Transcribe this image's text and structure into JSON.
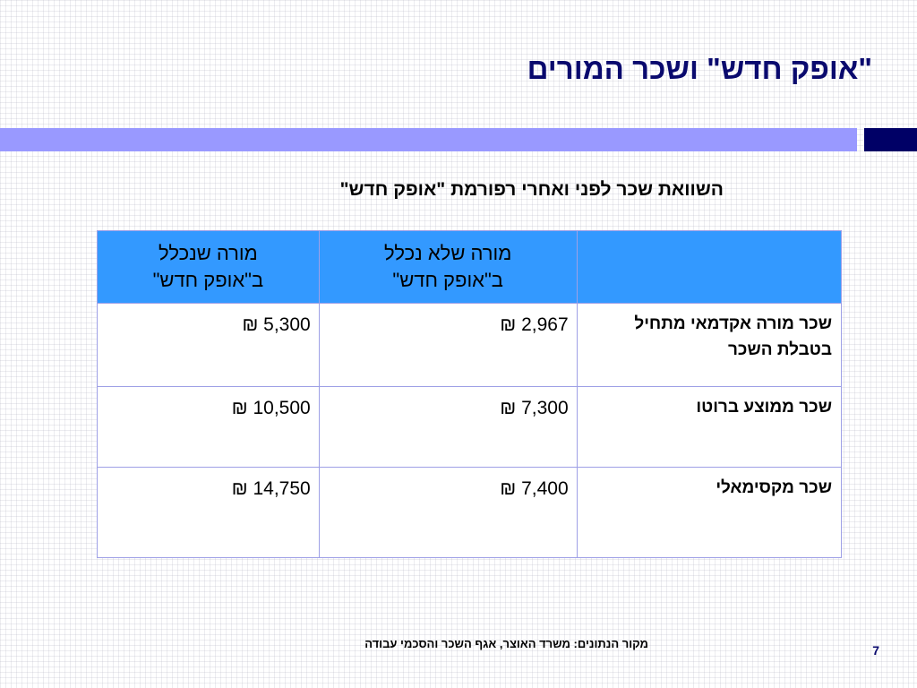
{
  "slide": {
    "title": "\"אופק חדש\" ושכר המורים",
    "subtitle": "השוואת שכר לפני ואחרי רפורמת \"אופק חדש\"",
    "source_note": "מקור הנתונים:  משרד האוצר, אגף השכר והסכמי עבודה",
    "page_number": "7"
  },
  "colors": {
    "title": "#0a0a6e",
    "band_light": "#9999ff",
    "band_dark": "#000066",
    "table_header_bg": "#3399ff",
    "table_border": "#9ea0e6"
  },
  "table": {
    "headers": [
      "",
      "מורה שלא נכלל\nב\"אופק חדש\"",
      "מורה שנכלל\nב\"אופק חדש\""
    ],
    "rows": [
      {
        "label": "שכר מורה אקדמאי מתחיל\nבטבלת השכר",
        "not_included": "2,967 ₪",
        "included": "5,300 ₪"
      },
      {
        "label": "שכר ממוצע ברוטו",
        "not_included": "7,300 ₪",
        "included": "10,500 ₪"
      },
      {
        "label": "שכר מקסימאלי",
        "not_included": "7,400 ₪",
        "included": "14,750 ₪"
      }
    ]
  }
}
